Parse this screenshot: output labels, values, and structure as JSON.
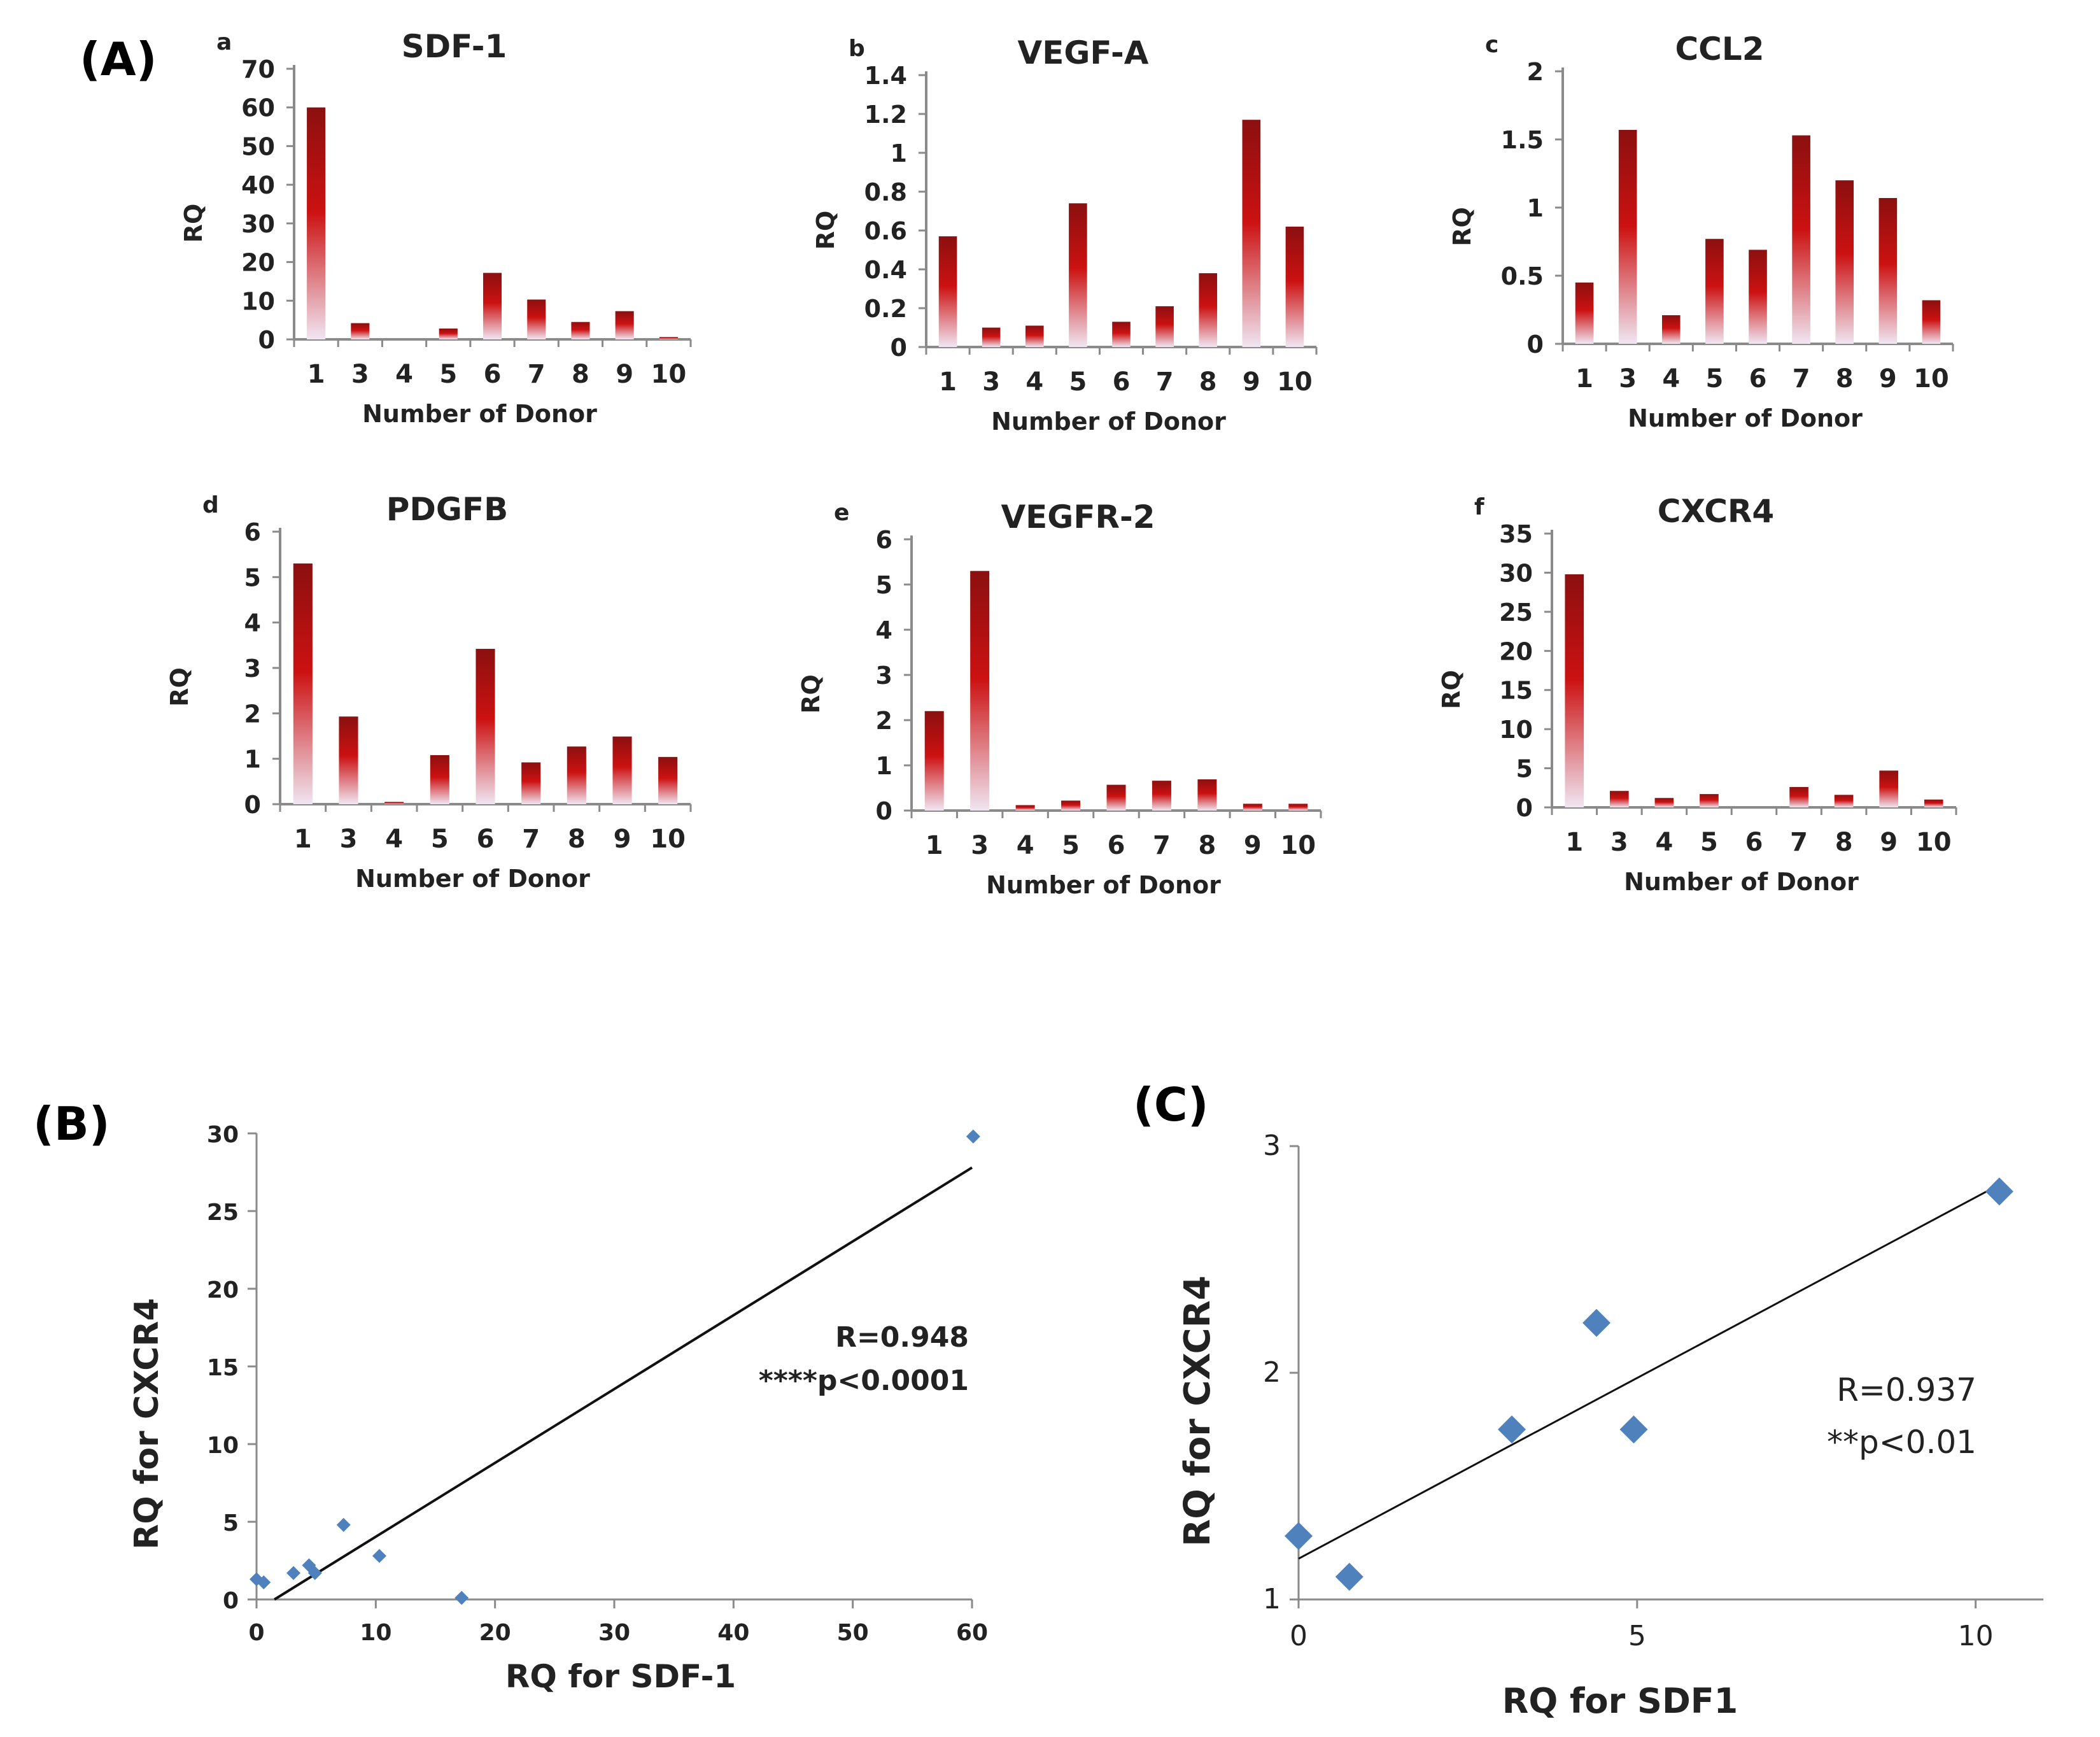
{
  "figure": {
    "panel_labels": [
      "(A)",
      "(B)",
      "(C)"
    ]
  },
  "colors": {
    "bar_dark": "#8b1010",
    "bar_mid": "#cc1111",
    "bar_light": "#f0e6f2",
    "marker": "#4f81bd",
    "axis": "#8a8a8a",
    "text": "#222222",
    "fit_line": "#111111"
  },
  "chart_data": [
    {
      "id": "a",
      "type": "bar",
      "title": "SDF-1",
      "sublabel": "a",
      "xlabel": "Number of Donor",
      "ylabel": "RQ",
      "categories": [
        "1",
        "3",
        "4",
        "5",
        "6",
        "7",
        "8",
        "9",
        "10"
      ],
      "values": [
        60,
        4.2,
        0,
        2.8,
        17.2,
        10.3,
        4.5,
        7.3,
        0.6
      ],
      "ylim": [
        0,
        70
      ],
      "yticks": [
        0,
        10,
        20,
        30,
        40,
        50,
        60,
        70
      ],
      "ytick_labels": [
        "0",
        "10",
        "20",
        "30",
        "40",
        "50",
        "60",
        "70"
      ]
    },
    {
      "id": "b",
      "type": "bar",
      "title": "VEGF-A",
      "sublabel": "b",
      "xlabel": "Number of Donor",
      "ylabel": "RQ",
      "categories": [
        "1",
        "3",
        "4",
        "5",
        "6",
        "7",
        "8",
        "9",
        "10"
      ],
      "values": [
        0.57,
        0.1,
        0.11,
        0.74,
        0.13,
        0.21,
        0.38,
        1.17,
        0.62
      ],
      "ylim": [
        0,
        1.4
      ],
      "yticks": [
        0,
        0.2,
        0.4,
        0.6,
        0.8,
        1,
        1.2,
        1.4
      ],
      "ytick_labels": [
        "0",
        "0.2",
        "0.4",
        "0.6",
        "0.8",
        "1",
        "1.2",
        "1.4"
      ]
    },
    {
      "id": "c",
      "type": "bar",
      "title": "CCL2",
      "sublabel": "c",
      "xlabel": "Number of Donor",
      "ylabel": "RQ",
      "categories": [
        "1",
        "3",
        "4",
        "5",
        "6",
        "7",
        "8",
        "9",
        "10"
      ],
      "values": [
        0.45,
        1.57,
        0.21,
        0.77,
        0.69,
        1.53,
        1.2,
        1.07,
        0.32
      ],
      "ylim": [
        0,
        2
      ],
      "yticks": [
        0,
        0.5,
        1,
        1.5,
        2
      ],
      "ytick_labels": [
        "0",
        "0.5",
        "1",
        "1.5",
        "2"
      ]
    },
    {
      "id": "d",
      "type": "bar",
      "title": "PDGFB",
      "sublabel": "d",
      "xlabel": "Number of Donor",
      "ylabel": "RQ",
      "categories": [
        "1",
        "3",
        "4",
        "5",
        "6",
        "7",
        "8",
        "9",
        "10"
      ],
      "values": [
        5.3,
        1.93,
        0.05,
        1.08,
        3.42,
        0.92,
        1.27,
        1.49,
        1.04
      ],
      "ylim": [
        0,
        6
      ],
      "yticks": [
        0,
        1,
        2,
        3,
        4,
        5,
        6
      ],
      "ytick_labels": [
        "0",
        "1",
        "2",
        "3",
        "4",
        "5",
        "6"
      ]
    },
    {
      "id": "e",
      "type": "bar",
      "title": "VEGFR-2",
      "sublabel": "e",
      "xlabel": "Number of Donor",
      "ylabel": "RQ",
      "categories": [
        "1",
        "3",
        "4",
        "5",
        "6",
        "7",
        "8",
        "9",
        "10"
      ],
      "values": [
        2.2,
        5.3,
        0.12,
        0.22,
        0.57,
        0.66,
        0.69,
        0.15,
        0.15
      ],
      "ylim": [
        0,
        6
      ],
      "yticks": [
        0,
        1,
        2,
        3,
        4,
        5,
        6
      ],
      "ytick_labels": [
        "0",
        "1",
        "2",
        "3",
        "4",
        "5",
        "6"
      ]
    },
    {
      "id": "f",
      "type": "bar",
      "title": "CXCR4",
      "sublabel": "f",
      "xlabel": "Number of Donor",
      "ylabel": "RQ",
      "categories": [
        "1",
        "3",
        "4",
        "5",
        "6",
        "7",
        "8",
        "9",
        "10"
      ],
      "values": [
        29.8,
        2.1,
        1.2,
        1.7,
        0,
        2.6,
        1.6,
        4.7,
        1.0
      ],
      "ylim": [
        0,
        35
      ],
      "yticks": [
        0,
        5,
        10,
        15,
        20,
        25,
        30,
        35
      ],
      "ytick_labels": [
        "0",
        "5",
        "10",
        "15",
        "20",
        "25",
        "30",
        "35"
      ]
    },
    {
      "id": "B",
      "type": "scatter",
      "title": "",
      "xlabel": "RQ for SDF-1",
      "ylabel": "RQ for CXCR4",
      "points": [
        [
          0,
          1.3
        ],
        [
          0.6,
          1.1
        ],
        [
          3.1,
          1.7
        ],
        [
          4.4,
          2.2
        ],
        [
          4.9,
          1.7
        ],
        [
          7.3,
          4.8
        ],
        [
          10.3,
          2.8
        ],
        [
          17.2,
          0.1
        ],
        [
          60.1,
          29.8
        ]
      ],
      "fit": [
        [
          1.5,
          0
        ],
        [
          60,
          27.8
        ]
      ],
      "xlim": [
        0,
        60
      ],
      "ylim": [
        0,
        30
      ],
      "xticks": [
        0,
        10,
        20,
        30,
        40,
        50,
        60
      ],
      "xtick_labels": [
        "0",
        "10",
        "20",
        "30",
        "40",
        "50",
        "60"
      ],
      "yticks": [
        0,
        5,
        10,
        15,
        20,
        25,
        30
      ],
      "ytick_labels": [
        "0",
        "5",
        "10",
        "15",
        "20",
        "25",
        "30"
      ],
      "annotations": [
        "R=0.948",
        "****p<0.0001"
      ]
    },
    {
      "id": "C",
      "type": "scatter",
      "title": "",
      "xlabel": "RQ for SDF1",
      "ylabel": "RQ for CXCR4",
      "points": [
        [
          0,
          1.28
        ],
        [
          0.75,
          1.1
        ],
        [
          3.15,
          1.75
        ],
        [
          4.4,
          2.22
        ],
        [
          4.95,
          1.75
        ],
        [
          10.35,
          2.8
        ]
      ],
      "fit": [
        [
          0,
          1.18
        ],
        [
          10.35,
          2.83
        ]
      ],
      "xlim": [
        0,
        11
      ],
      "ylim": [
        1,
        3
      ],
      "xticks": [
        0,
        5,
        10
      ],
      "xtick_labels": [
        "0",
        "5",
        "10"
      ],
      "yticks": [
        1,
        2,
        3
      ],
      "ytick_labels": [
        "1",
        "2",
        "3"
      ],
      "annotations": [
        "R=0.937",
        "**p<0.01"
      ]
    }
  ]
}
